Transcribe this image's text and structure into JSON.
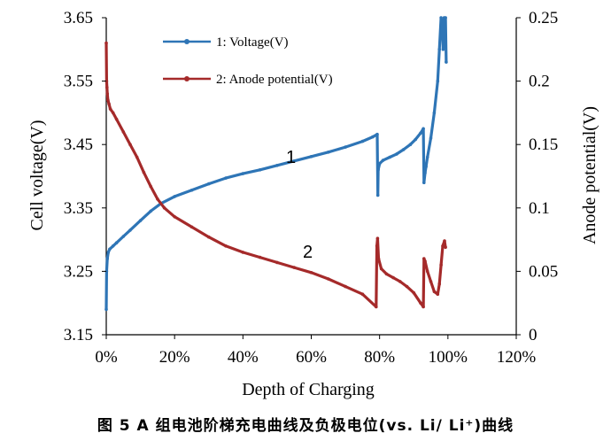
{
  "chart_data": {
    "type": "line",
    "xlabel": "Depth of Charging",
    "ylabel_left": "Cell voltage(V)",
    "ylabel_right": "Anode potential(V)",
    "xlim": [
      0,
      120
    ],
    "ylim_left": [
      3.15,
      3.65
    ],
    "ylim_right": [
      0,
      0.25
    ],
    "x_ticks": [
      0,
      20,
      40,
      60,
      80,
      100,
      120
    ],
    "x_tick_labels": [
      "0%",
      "20%",
      "40%",
      "60%",
      "80%",
      "100%",
      "120%"
    ],
    "y_left_ticks": [
      3.15,
      3.25,
      3.35,
      3.45,
      3.55,
      3.65
    ],
    "y_left_tick_labels": [
      "3.15",
      "3.25",
      "3.35",
      "3.45",
      "3.55",
      "3.65"
    ],
    "y_right_ticks": [
      0,
      0.05,
      0.1,
      0.15,
      0.2,
      0.25
    ],
    "y_right_tick_labels": [
      "0",
      "0.05",
      "0.1",
      "0.15",
      "0.2",
      "0.25"
    ],
    "legend_position": "top-left inside plot",
    "series": [
      {
        "name": "1: Voltage(V)",
        "label": "1",
        "axis": "left",
        "color": "#2e75b6",
        "x": [
          0,
          0.1,
          0.3,
          0.6,
          1,
          2,
          3,
          5,
          7,
          10,
          13,
          16,
          20,
          25,
          30,
          35,
          40,
          45,
          50,
          55,
          60,
          65,
          70,
          75,
          78,
          79.3,
          79.5,
          79.6,
          80,
          81,
          83,
          85,
          87,
          89,
          90.5,
          92,
          92.8,
          93,
          93.3,
          93.6,
          94,
          95,
          96,
          97,
          97.5,
          98,
          98.3,
          98.6,
          98.9,
          99.1,
          99.3,
          99.5
        ],
        "y": [
          3.19,
          3.25,
          3.27,
          3.28,
          3.285,
          3.29,
          3.295,
          3.305,
          3.315,
          3.33,
          3.345,
          3.357,
          3.368,
          3.378,
          3.388,
          3.397,
          3.404,
          3.41,
          3.417,
          3.424,
          3.431,
          3.438,
          3.446,
          3.455,
          3.462,
          3.466,
          3.37,
          3.41,
          3.42,
          3.425,
          3.43,
          3.435,
          3.442,
          3.45,
          3.458,
          3.468,
          3.475,
          3.39,
          3.405,
          3.415,
          3.43,
          3.46,
          3.5,
          3.55,
          3.6,
          3.65,
          3.64,
          3.6,
          3.65,
          3.62,
          3.65,
          3.58
        ]
      },
      {
        "name": "2: Anode potential(V)",
        "label": "2",
        "axis": "right",
        "color": "#a52a2a",
        "x": [
          0,
          0.1,
          0.2,
          0.3,
          0.5,
          0.8,
          1.2,
          2,
          3,
          5,
          7,
          9,
          11,
          13,
          15,
          17,
          20,
          25,
          30,
          35,
          40,
          45,
          50,
          55,
          60,
          65,
          70,
          75,
          79,
          79.2,
          79.4,
          79.7,
          80.5,
          82,
          84,
          86,
          88,
          90,
          92,
          92.8,
          93,
          93.3,
          94,
          95,
          96,
          97,
          97.5,
          98,
          98.5,
          99,
          99.3
        ],
        "y": [
          0.23,
          0.2,
          0.195,
          0.19,
          0.185,
          0.182,
          0.178,
          0.175,
          0.17,
          0.16,
          0.15,
          0.14,
          0.128,
          0.117,
          0.107,
          0.1,
          0.093,
          0.085,
          0.077,
          0.07,
          0.065,
          0.061,
          0.057,
          0.053,
          0.049,
          0.044,
          0.038,
          0.032,
          0.022,
          0.07,
          0.076,
          0.06,
          0.052,
          0.048,
          0.045,
          0.042,
          0.038,
          0.033,
          0.025,
          0.022,
          0.06,
          0.058,
          0.05,
          0.042,
          0.034,
          0.032,
          0.04,
          0.055,
          0.07,
          0.074,
          0.069
        ]
      }
    ]
  },
  "caption": "图 5   A 组电池阶梯充电曲线及负极电位(vs. Li/ Li⁺)曲线"
}
